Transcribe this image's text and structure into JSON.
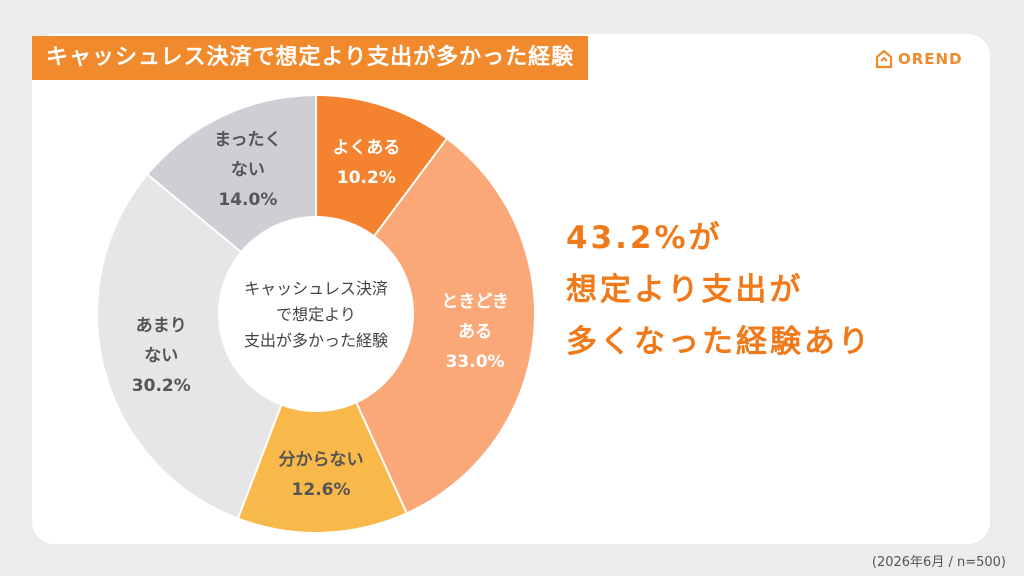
{
  "title": "キャッシュレス決済で想定より支出が多かった経験",
  "logo": {
    "text": "OREND",
    "icon": "house-icon"
  },
  "chart_data": {
    "type": "pie",
    "center_label": [
      "キャッシュレス決済",
      "で想定より",
      "支出が多かった経験"
    ],
    "slices": [
      {
        "label": [
          "よくある"
        ],
        "value": 10.2,
        "value_text": "10.2%",
        "color": "#f5822f",
        "label_color": "#ffffff"
      },
      {
        "label": [
          "ときどき",
          "ある"
        ],
        "value": 33.0,
        "value_text": "33.0%",
        "color": "#fba878",
        "label_color": "#ffffff"
      },
      {
        "label": [
          "分からない"
        ],
        "value": 12.6,
        "value_text": "12.6%",
        "color": "#f9b84a",
        "label_color": "#555555"
      },
      {
        "label": [
          "あまり",
          "ない"
        ],
        "value": 30.2,
        "value_text": "30.2%",
        "color": "#e6e6e6",
        "label_color": "#555555"
      },
      {
        "label": [
          "まったく",
          "ない"
        ],
        "value": 14.0,
        "value_text": "14.0%",
        "color": "#d0cdd4",
        "label_color": "#555555"
      }
    ]
  },
  "highlight": [
    "43.2%が",
    "想定より支出が",
    "多くなった経験あり"
  ],
  "footnote": "(2026年6月 / n=500)"
}
